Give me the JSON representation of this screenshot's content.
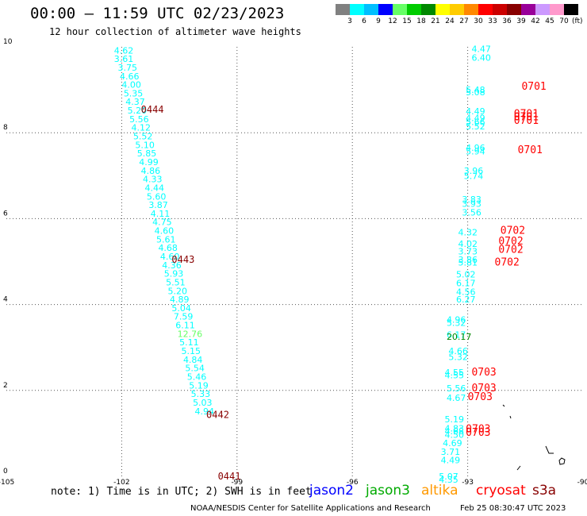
{
  "header": {
    "title": "00:00 – 11:59 UTC 02/23/2023",
    "subtitle": "12 hour collection of altimeter wave heights"
  },
  "colorbar": {
    "colors": [
      "#808080",
      "#00ffff",
      "#00bfff",
      "#0000ff",
      "#66ff66",
      "#00cc00",
      "#008800",
      "#ffff00",
      "#ffcc00",
      "#ff8800",
      "#ff0000",
      "#cc0000",
      "#880000",
      "#990099",
      "#cc99ff",
      "#ff99cc",
      "#000000"
    ],
    "labels": [
      "3",
      "6",
      "9",
      "12",
      "15",
      "18",
      "21",
      "24",
      "27",
      "30",
      "33",
      "36",
      "39",
      "42",
      "45",
      "70"
    ],
    "unit": "(ft)"
  },
  "footer": {
    "note": "note: 1) Time is in UTC; 2) SWH is in feet",
    "legend": [
      {
        "name": "jason2",
        "color": "#0000ff"
      },
      {
        "name": "jason3",
        "color": "#00aa00"
      },
      {
        "name": "altika",
        "color": "#ff9900"
      },
      {
        "name": "cryosat",
        "color": "#ff0000"
      },
      {
        "name": "s3a",
        "color": "#880000"
      }
    ],
    "credit": "NOAA/NESDIS Center for Satellite Applications and Research",
    "timestamp": "Feb 25 08:30:47 UTC 2023"
  },
  "chart_data": {
    "type": "scatter",
    "title": "00:00 – 11:59 UTC 02/23/2023",
    "subtitle": "12 hour collection of altimeter wave heights",
    "xlim": [
      -105,
      -90
    ],
    "ylim": [
      0,
      10
    ],
    "x_ticks": [
      "-105",
      "-102",
      "-99",
      "-96",
      "-93",
      "-90"
    ],
    "y_ticks": [
      "0",
      "2",
      "4",
      "6",
      "8",
      "10"
    ],
    "grid": true,
    "value_color": "#00ffff",
    "value_color_high": "#66ff66",
    "value_color_mid": "#008800",
    "track_a_values": [
      {
        "x": -102.2,
        "y": 9.92,
        "v": "4.62"
      },
      {
        "x": -102.2,
        "y": 9.72,
        "v": "3.61"
      },
      {
        "x": -102.1,
        "y": 9.52,
        "v": "3.75"
      },
      {
        "x": -102.05,
        "y": 9.32,
        "v": "4.66"
      },
      {
        "x": -102.0,
        "y": 9.12,
        "v": "4.00"
      },
      {
        "x": -101.95,
        "y": 8.92,
        "v": "5.35"
      },
      {
        "x": -101.9,
        "y": 8.72,
        "v": "4.37"
      },
      {
        "x": -101.85,
        "y": 8.52,
        "v": "5.20"
      },
      {
        "x": -101.8,
        "y": 8.32,
        "v": "5.56"
      },
      {
        "x": -101.75,
        "y": 8.12,
        "v": "4.12"
      },
      {
        "x": -101.7,
        "y": 7.92,
        "v": "5.52"
      },
      {
        "x": -101.65,
        "y": 7.72,
        "v": "5.10"
      },
      {
        "x": -101.6,
        "y": 7.52,
        "v": "5.85"
      },
      {
        "x": -101.55,
        "y": 7.32,
        "v": "4.99"
      },
      {
        "x": -101.5,
        "y": 7.12,
        "v": "4.86"
      },
      {
        "x": -101.45,
        "y": 6.92,
        "v": "4.33"
      },
      {
        "x": -101.4,
        "y": 6.72,
        "v": "4.44"
      },
      {
        "x": -101.35,
        "y": 6.52,
        "v": "5.60"
      },
      {
        "x": -101.3,
        "y": 6.32,
        "v": "3.87"
      },
      {
        "x": -101.25,
        "y": 6.12,
        "v": "4.11"
      },
      {
        "x": -101.2,
        "y": 5.92,
        "v": "4.75"
      },
      {
        "x": -101.15,
        "y": 5.72,
        "v": "4.60"
      },
      {
        "x": -101.1,
        "y": 5.52,
        "v": "5.61"
      },
      {
        "x": -101.05,
        "y": 5.32,
        "v": "4.68"
      },
      {
        "x": -101.0,
        "y": 5.12,
        "v": "4.60"
      },
      {
        "x": -100.95,
        "y": 4.92,
        "v": "4.36"
      },
      {
        "x": -100.9,
        "y": 4.72,
        "v": "5.93"
      },
      {
        "x": -100.85,
        "y": 4.52,
        "v": "5.51"
      },
      {
        "x": -100.8,
        "y": 4.32,
        "v": "5.20"
      },
      {
        "x": -100.75,
        "y": 4.12,
        "v": "4.89"
      },
      {
        "x": -100.7,
        "y": 3.92,
        "v": "5.04"
      },
      {
        "x": -100.65,
        "y": 3.72,
        "v": "7.59"
      },
      {
        "x": -100.6,
        "y": 3.52,
        "v": "6.11"
      },
      {
        "x": -100.55,
        "y": 3.32,
        "v": "12.76",
        "hi": true
      },
      {
        "x": -100.5,
        "y": 3.12,
        "v": "5.11"
      },
      {
        "x": -100.45,
        "y": 2.92,
        "v": "5.15"
      },
      {
        "x": -100.4,
        "y": 2.72,
        "v": "4.84"
      },
      {
        "x": -100.35,
        "y": 2.52,
        "v": "5.54"
      },
      {
        "x": -100.3,
        "y": 2.32,
        "v": "5.46"
      },
      {
        "x": -100.25,
        "y": 2.12,
        "v": "5.19"
      },
      {
        "x": -100.2,
        "y": 1.92,
        "v": "5.33"
      },
      {
        "x": -100.15,
        "y": 1.72,
        "v": "5.03"
      },
      {
        "x": -100.1,
        "y": 1.52,
        "v": "4.94"
      }
    ],
    "track_a_passes": [
      {
        "x": -101.5,
        "y": 8.54,
        "label": "0444"
      },
      {
        "x": -100.7,
        "y": 5.05,
        "label": "0443"
      },
      {
        "x": -99.8,
        "y": 1.43,
        "label": "0442"
      },
      {
        "x": -99.5,
        "y": 0.0,
        "label": "0441"
      }
    ],
    "track_b_values": [
      {
        "x": -92.9,
        "y": 9.95,
        "v": "4.47"
      },
      {
        "x": -92.9,
        "y": 9.75,
        "v": "6.40"
      },
      {
        "x": -93.05,
        "y": 9.0,
        "v": "5.48"
      },
      {
        "x": -93.05,
        "y": 8.95,
        "v": "5.08"
      },
      {
        "x": -93.05,
        "y": 8.5,
        "v": "4.49"
      },
      {
        "x": -93.05,
        "y": 8.35,
        "v": "4.49"
      },
      {
        "x": -93.05,
        "y": 8.25,
        "v": "5.66"
      },
      {
        "x": -93.05,
        "y": 8.15,
        "v": "5.52"
      },
      {
        "x": -93.05,
        "y": 7.65,
        "v": "4.96"
      },
      {
        "x": -93.05,
        "y": 7.57,
        "v": "5.94"
      },
      {
        "x": -93.1,
        "y": 7.12,
        "v": "3.96"
      },
      {
        "x": -93.1,
        "y": 7.0,
        "v": "5.74"
      },
      {
        "x": -93.15,
        "y": 6.45,
        "v": "3.83"
      },
      {
        "x": -93.15,
        "y": 6.35,
        "v": "3.93"
      },
      {
        "x": -93.15,
        "y": 6.15,
        "v": "3.56"
      },
      {
        "x": -93.25,
        "y": 5.68,
        "v": "4.32"
      },
      {
        "x": -93.25,
        "y": 5.42,
        "v": "4.02"
      },
      {
        "x": -93.25,
        "y": 5.24,
        "v": "3.73"
      },
      {
        "x": -93.25,
        "y": 5.05,
        "v": "3.86"
      },
      {
        "x": -93.25,
        "y": 4.98,
        "v": "5.81"
      },
      {
        "x": -93.3,
        "y": 4.7,
        "v": "5.02"
      },
      {
        "x": -93.3,
        "y": 4.5,
        "v": "6.17"
      },
      {
        "x": -93.3,
        "y": 4.3,
        "v": "4.56"
      },
      {
        "x": -93.3,
        "y": 4.12,
        "v": "6.27"
      },
      {
        "x": -93.55,
        "y": 3.65,
        "v": "4.96"
      },
      {
        "x": -93.55,
        "y": 3.58,
        "v": "5.32"
      },
      {
        "x": -93.55,
        "y": 3.3,
        "v": "6.17"
      },
      {
        "x": -93.55,
        "y": 3.25,
        "v": "20.17",
        "mid": true
      },
      {
        "x": -93.5,
        "y": 2.92,
        "v": "4.66"
      },
      {
        "x": -93.5,
        "y": 2.78,
        "v": "5.32"
      },
      {
        "x": -93.6,
        "y": 2.42,
        "v": "4.55"
      },
      {
        "x": -93.6,
        "y": 2.36,
        "v": "4.55"
      },
      {
        "x": -93.55,
        "y": 2.05,
        "v": "5.56"
      },
      {
        "x": -93.55,
        "y": 1.83,
        "v": "4.67"
      },
      {
        "x": -93.6,
        "y": 1.33,
        "v": "5.19"
      },
      {
        "x": -93.6,
        "y": 1.12,
        "v": "4.83"
      },
      {
        "x": -93.6,
        "y": 1.05,
        "v": "4.68"
      },
      {
        "x": -93.6,
        "y": 0.97,
        "v": "4.50"
      },
      {
        "x": -93.65,
        "y": 0.78,
        "v": "4.69"
      },
      {
        "x": -93.7,
        "y": 0.57,
        "v": "3.71"
      },
      {
        "x": -93.7,
        "y": 0.38,
        "v": "4.49"
      },
      {
        "x": -93.75,
        "y": 0.0,
        "v": "5.07"
      },
      {
        "x": -93.75,
        "y": -0.07,
        "v": "4.35"
      }
    ],
    "track_b_passes": [
      {
        "x": -91.6,
        "y": 9.08,
        "label": "0701"
      },
      {
        "x": -91.8,
        "y": 8.44,
        "label": "0701"
      },
      {
        "x": -91.8,
        "y": 8.36,
        "label": "0701"
      },
      {
        "x": -91.8,
        "y": 8.28,
        "label": "0701"
      },
      {
        "x": -91.7,
        "y": 7.6,
        "label": "0701"
      },
      {
        "x": -92.15,
        "y": 5.72,
        "label": "0702"
      },
      {
        "x": -92.2,
        "y": 5.47,
        "label": "0702"
      },
      {
        "x": -92.2,
        "y": 5.28,
        "label": "0702"
      },
      {
        "x": -92.3,
        "y": 4.98,
        "label": "0702"
      },
      {
        "x": -92.9,
        "y": 2.42,
        "label": "0703"
      },
      {
        "x": -92.9,
        "y": 2.05,
        "label": "0703"
      },
      {
        "x": -93.0,
        "y": 1.85,
        "label": "0703"
      },
      {
        "x": -93.05,
        "y": 1.1,
        "label": "0703"
      },
      {
        "x": -93.05,
        "y": 1.02,
        "label": "0703"
      }
    ]
  }
}
